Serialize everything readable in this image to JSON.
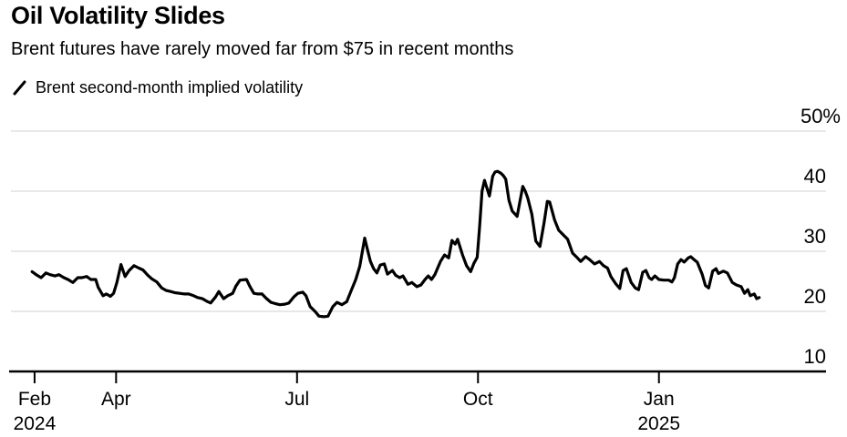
{
  "header": {
    "title": "Oil Volatility Slides",
    "subtitle": "Brent futures have rarely moved far from $75 in recent months"
  },
  "legend": {
    "swatch_icon": "line-slash",
    "series_label": "Brent second-month implied volatility"
  },
  "colors": {
    "background": "#ffffff",
    "text": "#000000",
    "series_line": "#000000",
    "gridline": "#d9d9d9",
    "axis": "#000000"
  },
  "chart_data": {
    "type": "line",
    "title": "Oil Volatility Slides",
    "series_name": "Brent second-month implied volatility",
    "unit": "%",
    "ylim": [
      10,
      50
    ],
    "grid": "horizontal",
    "ytick_side": "right",
    "legend_position": "top-left",
    "yticks": [
      {
        "value": 50,
        "label": "50%"
      },
      {
        "value": 40,
        "label": "40"
      },
      {
        "value": 30,
        "label": "30"
      },
      {
        "value": 20,
        "label": "20"
      },
      {
        "value": 10,
        "label": "10"
      }
    ],
    "xticks": [
      {
        "t": 0.029,
        "label": "Feb",
        "year": "2024"
      },
      {
        "t": 0.129,
        "label": "Apr",
        "year": ""
      },
      {
        "t": 0.351,
        "label": "Jul",
        "year": ""
      },
      {
        "t": 0.573,
        "label": "Oct",
        "year": ""
      },
      {
        "t": 0.795,
        "label": "Jan",
        "year": "2025"
      }
    ],
    "points": [
      [
        0.026,
        26.6
      ],
      [
        0.031,
        26.1
      ],
      [
        0.037,
        25.6
      ],
      [
        0.043,
        26.4
      ],
      [
        0.048,
        26.1
      ],
      [
        0.054,
        25.9
      ],
      [
        0.059,
        26.1
      ],
      [
        0.065,
        25.6
      ],
      [
        0.07,
        25.3
      ],
      [
        0.076,
        24.8
      ],
      [
        0.082,
        25.6
      ],
      [
        0.087,
        25.6
      ],
      [
        0.093,
        25.8
      ],
      [
        0.098,
        25.3
      ],
      [
        0.104,
        25.3
      ],
      [
        0.107,
        24.0
      ],
      [
        0.113,
        22.6
      ],
      [
        0.117,
        22.9
      ],
      [
        0.122,
        22.5
      ],
      [
        0.126,
        23.0
      ],
      [
        0.13,
        24.8
      ],
      [
        0.135,
        27.8
      ],
      [
        0.14,
        25.8
      ],
      [
        0.145,
        26.8
      ],
      [
        0.151,
        27.6
      ],
      [
        0.157,
        27.2
      ],
      [
        0.162,
        26.9
      ],
      [
        0.168,
        26.0
      ],
      [
        0.173,
        25.4
      ],
      [
        0.179,
        24.9
      ],
      [
        0.185,
        23.9
      ],
      [
        0.19,
        23.5
      ],
      [
        0.196,
        23.3
      ],
      [
        0.201,
        23.1
      ],
      [
        0.207,
        23.0
      ],
      [
        0.213,
        22.9
      ],
      [
        0.218,
        22.9
      ],
      [
        0.224,
        22.6
      ],
      [
        0.229,
        22.3
      ],
      [
        0.235,
        22.1
      ],
      [
        0.24,
        21.7
      ],
      [
        0.245,
        21.4
      ],
      [
        0.251,
        22.4
      ],
      [
        0.255,
        23.3
      ],
      [
        0.261,
        22.1
      ],
      [
        0.266,
        22.6
      ],
      [
        0.272,
        23.0
      ],
      [
        0.276,
        24.2
      ],
      [
        0.281,
        25.2
      ],
      [
        0.289,
        25.3
      ],
      [
        0.293,
        24.2
      ],
      [
        0.298,
        23.0
      ],
      [
        0.303,
        22.9
      ],
      [
        0.308,
        22.9
      ],
      [
        0.313,
        22.2
      ],
      [
        0.319,
        21.5
      ],
      [
        0.324,
        21.3
      ],
      [
        0.33,
        21.1
      ],
      [
        0.336,
        21.2
      ],
      [
        0.341,
        21.4
      ],
      [
        0.347,
        22.4
      ],
      [
        0.352,
        23.0
      ],
      [
        0.358,
        23.2
      ],
      [
        0.362,
        22.6
      ],
      [
        0.367,
        20.8
      ],
      [
        0.373,
        20.0
      ],
      [
        0.378,
        19.2
      ],
      [
        0.384,
        19.1
      ],
      [
        0.389,
        19.2
      ],
      [
        0.395,
        20.8
      ],
      [
        0.4,
        21.5
      ],
      [
        0.406,
        21.1
      ],
      [
        0.412,
        21.6
      ],
      [
        0.417,
        23.3
      ],
      [
        0.423,
        25.3
      ],
      [
        0.428,
        27.5
      ],
      [
        0.434,
        32.2
      ],
      [
        0.437,
        30.5
      ],
      [
        0.441,
        28.3
      ],
      [
        0.445,
        27.1
      ],
      [
        0.449,
        26.4
      ],
      [
        0.453,
        27.7
      ],
      [
        0.458,
        27.9
      ],
      [
        0.462,
        26.2
      ],
      [
        0.468,
        26.8
      ],
      [
        0.472,
        26.0
      ],
      [
        0.477,
        25.6
      ],
      [
        0.481,
        25.9
      ],
      [
        0.487,
        24.5
      ],
      [
        0.492,
        24.8
      ],
      [
        0.498,
        24.1
      ],
      [
        0.503,
        24.4
      ],
      [
        0.508,
        25.3
      ],
      [
        0.512,
        25.9
      ],
      [
        0.516,
        25.3
      ],
      [
        0.52,
        26.1
      ],
      [
        0.527,
        28.3
      ],
      [
        0.532,
        29.4
      ],
      [
        0.537,
        28.9
      ],
      [
        0.541,
        31.8
      ],
      [
        0.545,
        31.2
      ],
      [
        0.548,
        32.0
      ],
      [
        0.554,
        29.4
      ],
      [
        0.559,
        27.6
      ],
      [
        0.564,
        26.6
      ],
      [
        0.568,
        28.0
      ],
      [
        0.572,
        29.0
      ],
      [
        0.575,
        34.0
      ],
      [
        0.578,
        40.0
      ],
      [
        0.581,
        41.8
      ],
      [
        0.584,
        40.5
      ],
      [
        0.587,
        39.2
      ],
      [
        0.591,
        42.5
      ],
      [
        0.594,
        43.2
      ],
      [
        0.597,
        43.3
      ],
      [
        0.601,
        43.0
      ],
      [
        0.604,
        42.6
      ],
      [
        0.607,
        42.0
      ],
      [
        0.611,
        38.5
      ],
      [
        0.615,
        36.7
      ],
      [
        0.621,
        35.8
      ],
      [
        0.624,
        38.0
      ],
      [
        0.628,
        40.8
      ],
      [
        0.631,
        40.0
      ],
      [
        0.634,
        38.9
      ],
      [
        0.639,
        36.2
      ],
      [
        0.644,
        31.7
      ],
      [
        0.649,
        30.8
      ],
      [
        0.654,
        34.7
      ],
      [
        0.658,
        38.3
      ],
      [
        0.661,
        38.2
      ],
      [
        0.667,
        35.2
      ],
      [
        0.672,
        33.5
      ],
      [
        0.678,
        32.7
      ],
      [
        0.683,
        32.0
      ],
      [
        0.689,
        29.7
      ],
      [
        0.695,
        28.9
      ],
      [
        0.699,
        28.3
      ],
      [
        0.705,
        29.1
      ],
      [
        0.71,
        28.6
      ],
      [
        0.716,
        27.9
      ],
      [
        0.722,
        28.3
      ],
      [
        0.727,
        27.6
      ],
      [
        0.732,
        27.2
      ],
      [
        0.736,
        25.8
      ],
      [
        0.742,
        24.6
      ],
      [
        0.747,
        23.8
      ],
      [
        0.751,
        26.8
      ],
      [
        0.755,
        27.1
      ],
      [
        0.761,
        24.8
      ],
      [
        0.766,
        23.9
      ],
      [
        0.77,
        23.6
      ],
      [
        0.775,
        26.5
      ],
      [
        0.779,
        26.8
      ],
      [
        0.783,
        25.6
      ],
      [
        0.786,
        25.3
      ],
      [
        0.79,
        25.9
      ],
      [
        0.795,
        25.3
      ],
      [
        0.801,
        25.2
      ],
      [
        0.807,
        25.2
      ],
      [
        0.811,
        24.9
      ],
      [
        0.814,
        25.6
      ],
      [
        0.818,
        27.9
      ],
      [
        0.822,
        28.6
      ],
      [
        0.826,
        28.2
      ],
      [
        0.831,
        28.9
      ],
      [
        0.834,
        29.1
      ],
      [
        0.839,
        28.5
      ],
      [
        0.842,
        28.2
      ],
      [
        0.848,
        26.2
      ],
      [
        0.852,
        24.3
      ],
      [
        0.856,
        23.9
      ],
      [
        0.861,
        26.7
      ],
      [
        0.865,
        27.1
      ],
      [
        0.868,
        26.3
      ],
      [
        0.874,
        26.7
      ],
      [
        0.879,
        26.4
      ],
      [
        0.885,
        24.8
      ],
      [
        0.89,
        24.4
      ],
      [
        0.896,
        24.1
      ],
      [
        0.9,
        23.0
      ],
      [
        0.904,
        23.6
      ],
      [
        0.907,
        22.6
      ],
      [
        0.912,
        22.9
      ],
      [
        0.915,
        22.1
      ],
      [
        0.918,
        22.3
      ]
    ]
  }
}
